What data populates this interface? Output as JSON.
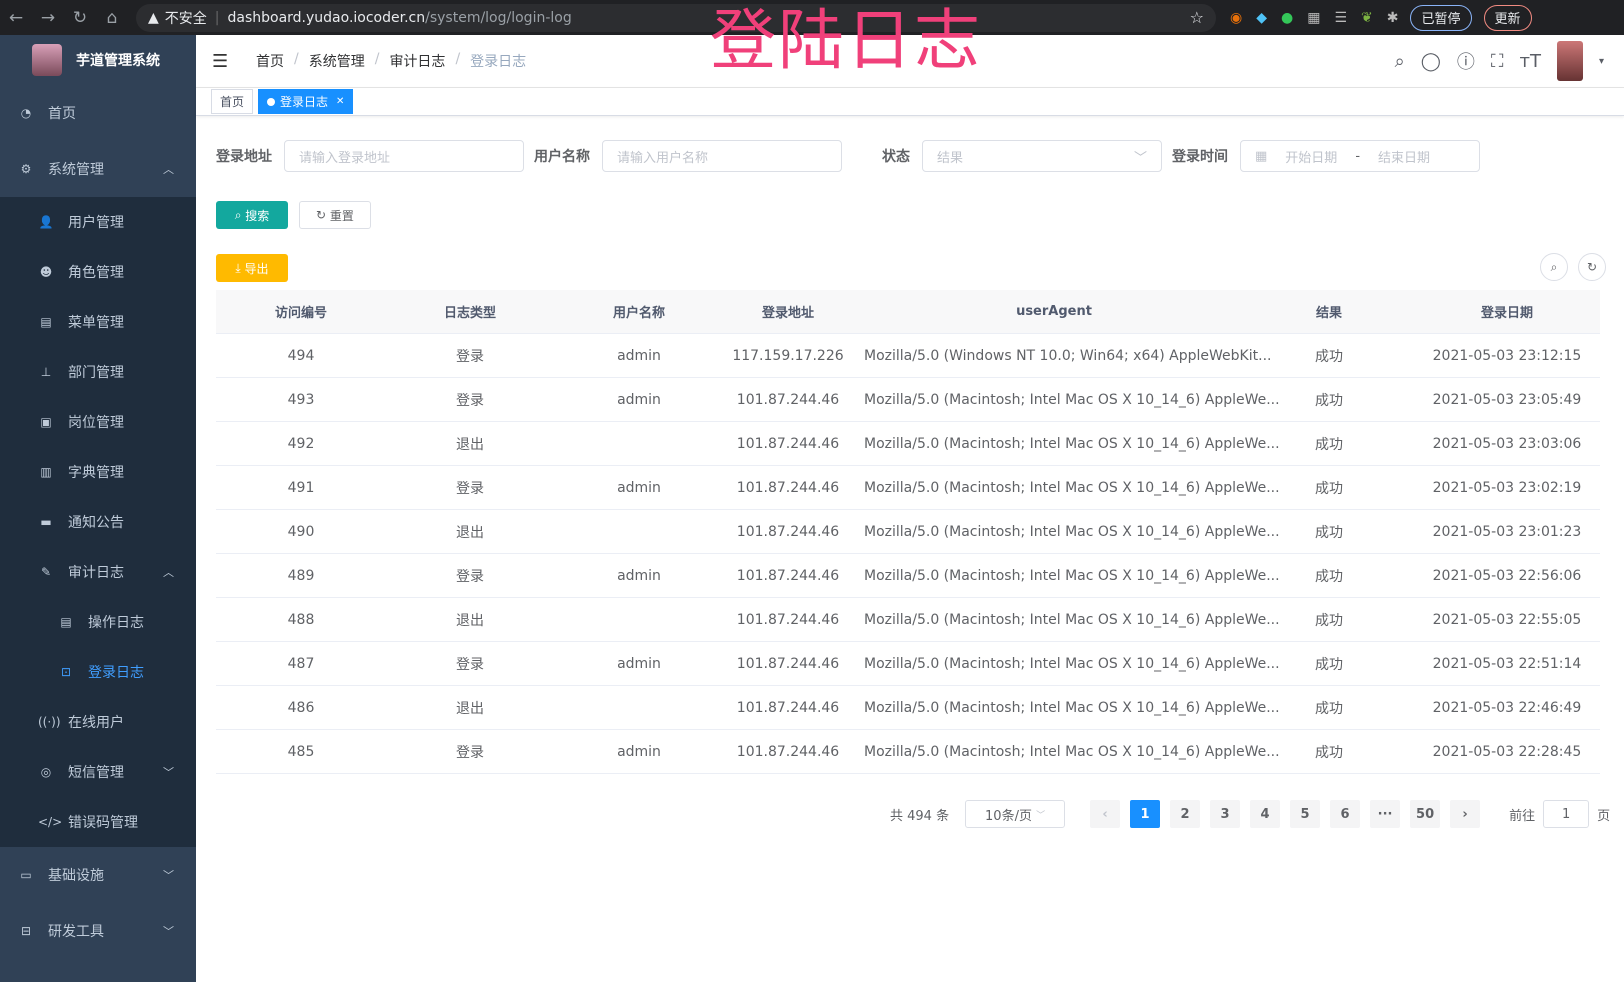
{
  "browser": {
    "security": "不安全",
    "url_host": "dashboard.yudao.iocoder.cn",
    "url_path": "/system/log/login-log",
    "profile": "已暂停",
    "update": "更新"
  },
  "overlay_title": "登陆日志",
  "sidebar": {
    "title": "芋道管理系统",
    "items": [
      {
        "label": "首页"
      },
      {
        "label": "系统管理"
      },
      {
        "label": "用户管理"
      },
      {
        "label": "角色管理"
      },
      {
        "label": "菜单管理"
      },
      {
        "label": "部门管理"
      },
      {
        "label": "岗位管理"
      },
      {
        "label": "字典管理"
      },
      {
        "label": "通知公告"
      },
      {
        "label": "审计日志"
      },
      {
        "label": "操作日志"
      },
      {
        "label": "登录日志"
      },
      {
        "label": "在线用户"
      },
      {
        "label": "短信管理"
      },
      {
        "label": "错误码管理"
      },
      {
        "label": "基础设施"
      },
      {
        "label": "研发工具"
      }
    ]
  },
  "breadcrumb": [
    "首页",
    "系统管理",
    "审计日志",
    "登录日志"
  ],
  "tags": [
    {
      "label": "首页"
    },
    {
      "label": "登录日志"
    }
  ],
  "form": {
    "addr_label": "登录地址",
    "addr_placeholder": "请输入登录地址",
    "user_label": "用户名称",
    "user_placeholder": "请输入用户名称",
    "status_label": "状态",
    "status_placeholder": "结果",
    "time_label": "登录时间",
    "start_placeholder": "开始日期",
    "range_sep": "-",
    "end_placeholder": "结束日期",
    "search": "搜索",
    "reset": "重置",
    "export": "导出"
  },
  "table": {
    "headers": [
      "访问编号",
      "日志类型",
      "用户名称",
      "登录地址",
      "userAgent",
      "结果",
      "登录日期"
    ],
    "rows": [
      [
        "494",
        "登录",
        "admin",
        "117.159.17.226",
        "Mozilla/5.0 (Windows NT 10.0; Win64; x64) AppleWebKit...",
        "成功",
        "2021-05-03 23:12:15"
      ],
      [
        "493",
        "登录",
        "admin",
        "101.87.244.46",
        "Mozilla/5.0 (Macintosh; Intel Mac OS X 10_14_6) AppleWe...",
        "成功",
        "2021-05-03 23:05:49"
      ],
      [
        "492",
        "退出",
        "",
        "101.87.244.46",
        "Mozilla/5.0 (Macintosh; Intel Mac OS X 10_14_6) AppleWe...",
        "成功",
        "2021-05-03 23:03:06"
      ],
      [
        "491",
        "登录",
        "admin",
        "101.87.244.46",
        "Mozilla/5.0 (Macintosh; Intel Mac OS X 10_14_6) AppleWe...",
        "成功",
        "2021-05-03 23:02:19"
      ],
      [
        "490",
        "退出",
        "",
        "101.87.244.46",
        "Mozilla/5.0 (Macintosh; Intel Mac OS X 10_14_6) AppleWe...",
        "成功",
        "2021-05-03 23:01:23"
      ],
      [
        "489",
        "登录",
        "admin",
        "101.87.244.46",
        "Mozilla/5.0 (Macintosh; Intel Mac OS X 10_14_6) AppleWe...",
        "成功",
        "2021-05-03 22:56:06"
      ],
      [
        "488",
        "退出",
        "",
        "101.87.244.46",
        "Mozilla/5.0 (Macintosh; Intel Mac OS X 10_14_6) AppleWe...",
        "成功",
        "2021-05-03 22:55:05"
      ],
      [
        "487",
        "登录",
        "admin",
        "101.87.244.46",
        "Mozilla/5.0 (Macintosh; Intel Mac OS X 10_14_6) AppleWe...",
        "成功",
        "2021-05-03 22:51:14"
      ],
      [
        "486",
        "退出",
        "",
        "101.87.244.46",
        "Mozilla/5.0 (Macintosh; Intel Mac OS X 10_14_6) AppleWe...",
        "成功",
        "2021-05-03 22:46:49"
      ],
      [
        "485",
        "登录",
        "admin",
        "101.87.244.46",
        "Mozilla/5.0 (Macintosh; Intel Mac OS X 10_14_6) AppleWe...",
        "成功",
        "2021-05-03 22:28:45"
      ]
    ]
  },
  "pagination": {
    "total": "共 494 条",
    "page_size": "10条/页",
    "pages": [
      "1",
      "2",
      "3",
      "4",
      "5",
      "6",
      "···",
      "50"
    ],
    "current": "1",
    "goto_label": "前往",
    "goto_value": "1",
    "goto_suffix": "页"
  },
  "colors": {
    "sidebar": "#304156",
    "primary": "#1890ff",
    "search": "#13a89e",
    "export": "#ffba00",
    "overlay": "#f0407a"
  }
}
